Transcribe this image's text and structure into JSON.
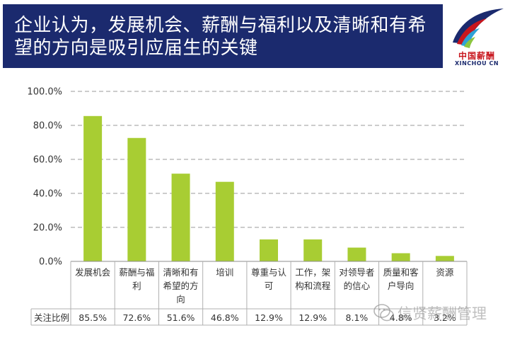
{
  "header": {
    "title": "企业认为，发展机会、薪酬与福利以及清晰和有希望的方向是吸引应届生的关键"
  },
  "logo": {
    "cn_text": "中国薪酬",
    "en_text": "XINCHOU CN",
    "colors": [
      "#1b2a6e",
      "#c8161d",
      "#2ea2d6",
      "#8cc63f"
    ]
  },
  "watermark": {
    "text": "信贤薪酬管理",
    "icon": "wechat-icon"
  },
  "chart_data": {
    "type": "bar",
    "title": "",
    "xlabel": "",
    "ylabel": "",
    "categories": [
      "发展机会",
      "薪酬与福利",
      "清晰和有希望的方向",
      "培训",
      "尊重与认可",
      "工作，架构和流程",
      "对领导者的信心",
      "质量和客户导向",
      "资源"
    ],
    "category_display_lines": [
      [
        "发展机会"
      ],
      [
        "薪酬与福",
        "利"
      ],
      [
        "清晰和有",
        "希望的方",
        "向"
      ],
      [
        "培训"
      ],
      [
        "尊重与认",
        "可"
      ],
      [
        "工作，架",
        "构和流程"
      ],
      [
        "对领导者",
        "的信心"
      ],
      [
        "质量和客",
        "户导向"
      ],
      [
        "资源"
      ]
    ],
    "series": [
      {
        "name": "关注比例",
        "values": [
          85.5,
          72.6,
          51.6,
          46.8,
          12.9,
          12.9,
          8.1,
          4.8,
          3.2
        ],
        "value_labels": [
          "85.5%",
          "72.6%",
          "51.6%",
          "46.8%",
          "12.9%",
          "12.9%",
          "8.1%",
          "4.8%",
          "3.2%"
        ]
      }
    ],
    "ylim": [
      0,
      100
    ],
    "yticks": [
      0,
      20,
      40,
      60,
      80,
      100
    ],
    "ytick_labels": [
      "0.0%",
      "20.0%",
      "40.0%",
      "60.0%",
      "80.0%",
      "100.0%"
    ],
    "grid": true,
    "legend": "none",
    "bar_color": "#a8cd33",
    "data_table": true
  }
}
